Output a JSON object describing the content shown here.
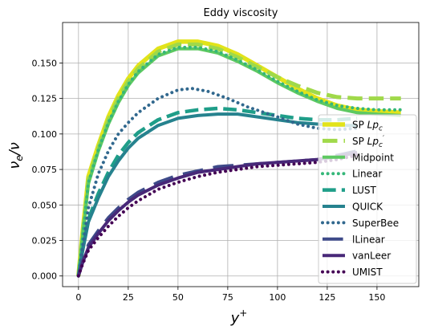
{
  "chart_data": {
    "type": "line",
    "title": "Eddy viscosity",
    "xlabel": "y⁺",
    "ylabel": "νe/ν",
    "xlim": [
      -8,
      171
    ],
    "ylim": [
      -0.0075,
      0.1785
    ],
    "xticks": [
      0,
      25,
      50,
      75,
      100,
      125,
      150
    ],
    "yticks": [
      0.0,
      0.025,
      0.05,
      0.075,
      0.1,
      0.125,
      0.15
    ],
    "xtick_labels": [
      "0",
      "25",
      "50",
      "75",
      "100",
      "125",
      "150"
    ],
    "ytick_labels": [
      "0.000",
      "0.025",
      "0.050",
      "0.075",
      "0.100",
      "0.125",
      "0.150"
    ],
    "grid": true,
    "legend_position": "right",
    "series": [
      {
        "name": "SP Lpc",
        "label_main": "SP ",
        "label_math": "Lp",
        "label_sub": "c",
        "label_prime": "",
        "color": "#e2e31a",
        "style": "solid",
        "width": 5.5,
        "x": [
          0,
          2,
          5,
          10,
          15,
          20,
          25,
          30,
          40,
          50,
          60,
          70,
          80,
          90,
          100,
          110,
          120,
          130,
          140,
          150,
          162
        ],
        "y": [
          0.0,
          0.03,
          0.07,
          0.092,
          0.112,
          0.127,
          0.139,
          0.148,
          0.16,
          0.165,
          0.165,
          0.162,
          0.156,
          0.148,
          0.14,
          0.132,
          0.125,
          0.12,
          0.117,
          0.116,
          0.115
        ]
      },
      {
        "name": "SP Lpc'",
        "label_main": "SP ",
        "label_math": "Lp",
        "label_sub": "c",
        "label_prime": "′",
        "color": "#a0d94a",
        "style": "dashed",
        "width": 5,
        "x": [
          0,
          2,
          5,
          10,
          15,
          20,
          25,
          30,
          40,
          50,
          60,
          70,
          80,
          90,
          100,
          110,
          120,
          130,
          140,
          150,
          162
        ],
        "y": [
          0.0,
          0.028,
          0.068,
          0.09,
          0.11,
          0.125,
          0.137,
          0.146,
          0.158,
          0.163,
          0.163,
          0.16,
          0.154,
          0.147,
          0.14,
          0.134,
          0.129,
          0.126,
          0.125,
          0.125,
          0.125
        ]
      },
      {
        "name": "Midpoint",
        "label_main": "Midpoint",
        "color": "#5ec961",
        "style": "solid",
        "width": 4,
        "x": [
          0,
          2,
          5,
          10,
          15,
          20,
          25,
          30,
          40,
          50,
          60,
          70,
          80,
          90,
          100,
          110,
          120,
          130,
          140,
          150,
          162
        ],
        "y": [
          0.0,
          0.027,
          0.065,
          0.088,
          0.107,
          0.122,
          0.134,
          0.143,
          0.155,
          0.16,
          0.16,
          0.157,
          0.151,
          0.144,
          0.136,
          0.129,
          0.123,
          0.118,
          0.115,
          0.114,
          0.113
        ]
      },
      {
        "name": "Linear",
        "label_main": "Linear",
        "color": "#35b779",
        "style": "dotted",
        "width": 4,
        "x": [
          0,
          2,
          5,
          10,
          15,
          20,
          25,
          30,
          40,
          50,
          60,
          70,
          80,
          90,
          100,
          110,
          120,
          130,
          140,
          150,
          162
        ],
        "y": [
          0.0,
          0.027,
          0.066,
          0.089,
          0.108,
          0.123,
          0.135,
          0.144,
          0.156,
          0.161,
          0.161,
          0.158,
          0.152,
          0.145,
          0.137,
          0.13,
          0.124,
          0.12,
          0.118,
          0.117,
          0.117
        ]
      },
      {
        "name": "LUST",
        "label_main": "LUST",
        "color": "#1f9e89",
        "style": "dashed",
        "width": 4.5,
        "x": [
          0,
          2,
          5,
          10,
          15,
          20,
          25,
          30,
          40,
          50,
          60,
          70,
          80,
          90,
          100,
          110,
          120,
          130,
          140
        ],
        "y": [
          0.0,
          0.018,
          0.04,
          0.058,
          0.073,
          0.085,
          0.094,
          0.101,
          0.11,
          0.115,
          0.117,
          0.118,
          0.117,
          0.115,
          0.113,
          0.111,
          0.11,
          0.11,
          0.111
        ]
      },
      {
        "name": "QUICK",
        "label_main": "QUICK",
        "color": "#26828e",
        "style": "solid",
        "width": 4,
        "x": [
          0,
          2,
          5,
          10,
          15,
          20,
          25,
          30,
          40,
          50,
          60,
          70,
          80,
          90,
          100,
          110,
          120,
          130,
          140
        ],
        "y": [
          0.0,
          0.017,
          0.038,
          0.055,
          0.07,
          0.081,
          0.09,
          0.097,
          0.106,
          0.111,
          0.113,
          0.114,
          0.114,
          0.112,
          0.11,
          0.108,
          0.107,
          0.106,
          0.106
        ]
      },
      {
        "name": "SuperBee",
        "label_main": "SuperBee",
        "color": "#31688e",
        "style": "dotted",
        "width": 4,
        "x": [
          0,
          2,
          5,
          10,
          15,
          20,
          25,
          30,
          40,
          50,
          57,
          65,
          75,
          85,
          100,
          110,
          120,
          130,
          140
        ],
        "y": [
          0.0,
          0.02,
          0.048,
          0.072,
          0.088,
          0.1,
          0.108,
          0.115,
          0.125,
          0.131,
          0.132,
          0.13,
          0.125,
          0.119,
          0.112,
          0.107,
          0.104,
          0.103,
          0.104
        ]
      },
      {
        "name": "lLinear",
        "label_main": "lLinear",
        "color": "#3e4a89",
        "style": "dashdot",
        "width": 4,
        "x": [
          0,
          2,
          5,
          10,
          15,
          20,
          25,
          30,
          40,
          50,
          60,
          70,
          80,
          90,
          100,
          110,
          120,
          130,
          140
        ],
        "y": [
          0.0,
          0.01,
          0.022,
          0.032,
          0.041,
          0.048,
          0.054,
          0.059,
          0.066,
          0.071,
          0.074,
          0.077,
          0.078,
          0.079,
          0.08,
          0.081,
          0.082,
          0.085,
          0.088
        ]
      },
      {
        "name": "vanLeer",
        "label_main": "vanLeer",
        "color": "#482878",
        "style": "solid",
        "width": 4,
        "x": [
          0,
          2,
          5,
          10,
          15,
          20,
          25,
          30,
          40,
          50,
          60,
          70,
          80,
          90,
          100,
          110,
          120,
          130,
          140
        ],
        "y": [
          0.0,
          0.009,
          0.02,
          0.03,
          0.039,
          0.046,
          0.052,
          0.057,
          0.064,
          0.069,
          0.073,
          0.075,
          0.077,
          0.079,
          0.08,
          0.081,
          0.082,
          0.084,
          0.087
        ]
      },
      {
        "name": "UMIST",
        "label_main": "UMIST",
        "color": "#440154",
        "style": "dotted",
        "width": 4,
        "x": [
          0,
          2,
          5,
          10,
          15,
          20,
          25,
          30,
          40,
          50,
          60,
          70,
          80,
          90,
          100,
          110,
          120,
          130,
          140
        ],
        "y": [
          0.0,
          0.008,
          0.018,
          0.027,
          0.035,
          0.042,
          0.048,
          0.053,
          0.061,
          0.066,
          0.07,
          0.073,
          0.075,
          0.077,
          0.078,
          0.079,
          0.08,
          0.082,
          0.085
        ]
      }
    ]
  }
}
